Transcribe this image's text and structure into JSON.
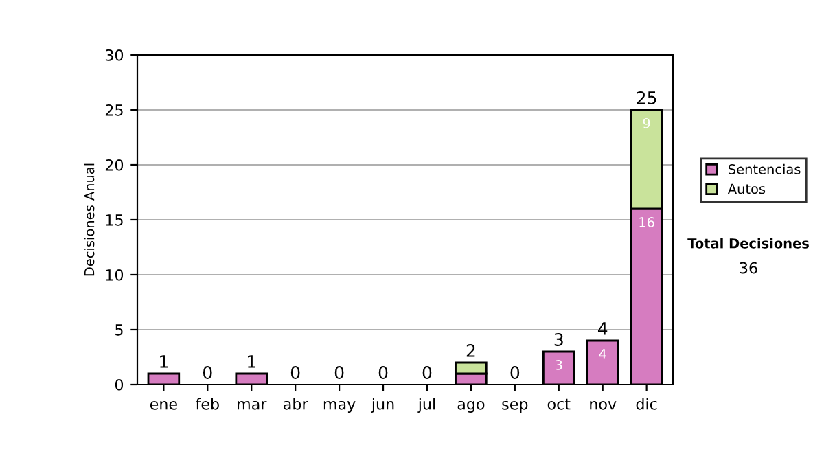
{
  "chart_data": {
    "type": "bar",
    "stacked": true,
    "ylabel": "Decisiones Anual",
    "categories": [
      "ene",
      "feb",
      "mar",
      "abr",
      "may",
      "jun",
      "jul",
      "ago",
      "sep",
      "oct",
      "nov",
      "dic"
    ],
    "series": [
      {
        "name": "Sentencias",
        "color": "#d67cc0",
        "values": [
          1,
          0,
          1,
          0,
          0,
          0,
          0,
          1,
          0,
          3,
          4,
          16
        ],
        "value_labels": [
          null,
          null,
          null,
          null,
          null,
          null,
          null,
          null,
          null,
          "3",
          "4",
          "16"
        ]
      },
      {
        "name": "Autos",
        "color": "#c9e39b",
        "values": [
          0,
          0,
          0,
          0,
          0,
          0,
          0,
          1,
          0,
          0,
          0,
          9
        ],
        "value_labels": [
          null,
          null,
          null,
          null,
          null,
          null,
          null,
          null,
          null,
          null,
          null,
          "9"
        ]
      }
    ],
    "totals": [
      "1",
      "0",
      "1",
      "0",
      "0",
      "0",
      "0",
      "2",
      "0",
      "3",
      "4",
      "25"
    ],
    "ylim": [
      0,
      30
    ],
    "yticks": [
      0,
      5,
      10,
      15,
      20,
      25,
      30
    ],
    "grid": "y",
    "legend": "right",
    "annotations": [
      "Total Decisiones",
      "36"
    ]
  }
}
